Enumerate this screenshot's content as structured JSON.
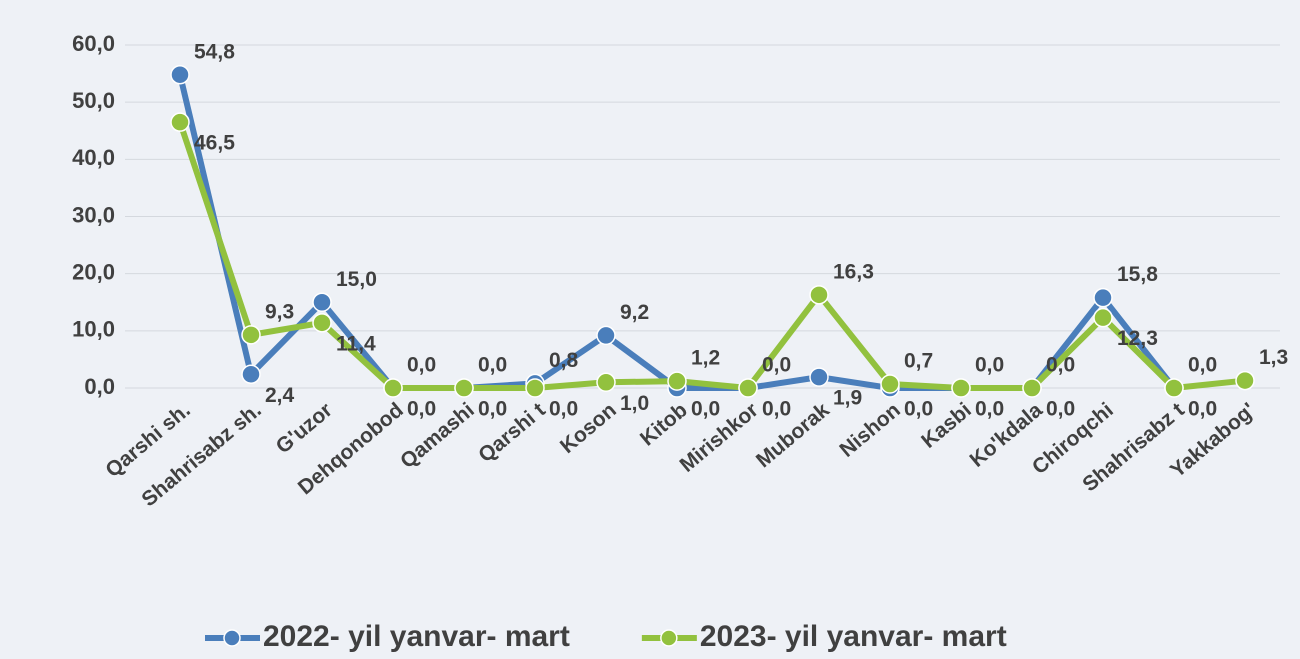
{
  "chart_data": {
    "type": "line",
    "categories": [
      "Qarshi sh.",
      "Shahrisabz sh.",
      "G'uzor",
      "Dehqonobod",
      "Qamashi",
      "Qarshi t",
      "Koson",
      "Kitob",
      "Mirishkor",
      "Muborak",
      "Nishon",
      "Kasbi",
      "Ko'kdala",
      "Chiroqchi",
      "Shahrisabz t",
      "Yakkabog'"
    ],
    "series": [
      {
        "name": "2022- yil yanvar- mart",
        "color": "#4a7ebb",
        "values": [
          54.8,
          2.4,
          15.0,
          0.0,
          0.0,
          0.8,
          9.2,
          0.0,
          0.0,
          1.9,
          0.0,
          0.0,
          0.0,
          15.8,
          0.0,
          null
        ],
        "value_labels": [
          "54,8",
          "2,4",
          "15,0",
          "0,0",
          "0,0",
          "0,8",
          "9,2",
          "0,0",
          "0,0",
          "1,9",
          "0,0",
          "0,0",
          "0,0",
          "15,8",
          "0,0",
          null
        ]
      },
      {
        "name": "2023- yil yanvar- mart",
        "color": "#92c13e",
        "values": [
          46.5,
          9.3,
          11.4,
          0.0,
          0.0,
          0.0,
          1.0,
          1.2,
          0.0,
          16.3,
          0.7,
          0.0,
          0.0,
          12.3,
          0.0,
          1.3
        ],
        "value_labels": [
          "46,5",
          "9,3",
          "11,4",
          "0,0",
          "0,0",
          "0,0",
          "1,0",
          "1,2",
          "0,0",
          "16,3",
          "0,7",
          "0,0",
          "0,0",
          "12,3",
          "0,0",
          "1,3"
        ]
      }
    ],
    "ylim": [
      0,
      60
    ],
    "yticks": [
      {
        "value": 0,
        "label": "0,0"
      },
      {
        "value": 10,
        "label": "10,0"
      },
      {
        "value": 20,
        "label": "20,0"
      },
      {
        "value": 30,
        "label": "30,0"
      },
      {
        "value": 40,
        "label": "40,0"
      },
      {
        "value": 50,
        "label": "50,0"
      },
      {
        "value": 60,
        "label": "60,0"
      }
    ],
    "grid": true
  }
}
